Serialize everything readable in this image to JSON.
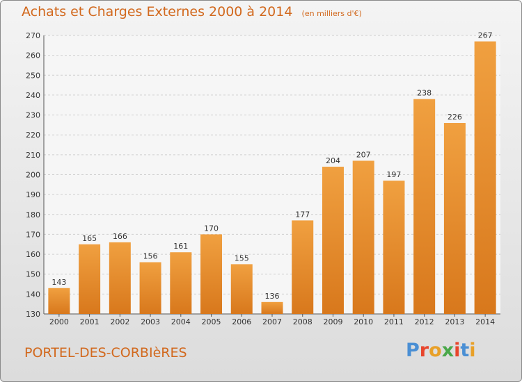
{
  "header": {
    "title": "Achats et Charges Externes 2000 à 2014",
    "subtitle": "(en milliers d'€)"
  },
  "footer": {
    "commune": "PORTEL-DES-CORBIèRES",
    "logo_text": "Proxiti",
    "logo_colors": [
      "#4a8fd4",
      "#e8452c",
      "#e8a028",
      "#4aa84a",
      "#e8452c",
      "#4a8fd4",
      "#e8a028"
    ]
  },
  "chart_data": {
    "type": "bar",
    "categories": [
      "2000",
      "2001",
      "2002",
      "2003",
      "2004",
      "2005",
      "2006",
      "2007",
      "2008",
      "2009",
      "2010",
      "2011",
      "2012",
      "2013",
      "2014"
    ],
    "values": [
      143,
      165,
      166,
      156,
      161,
      170,
      155,
      136,
      177,
      204,
      207,
      197,
      238,
      226,
      267
    ],
    "title": "Achats et Charges Externes 2000 à 2014",
    "subtitle": "(en milliers d'€)",
    "ylim": [
      130,
      270
    ],
    "yticks": [
      130,
      140,
      150,
      160,
      170,
      180,
      190,
      200,
      210,
      220,
      230,
      240,
      250,
      260,
      270
    ],
    "grid": true,
    "bar_color": "#f0a040",
    "bar_color_dark": "#d8781c"
  }
}
